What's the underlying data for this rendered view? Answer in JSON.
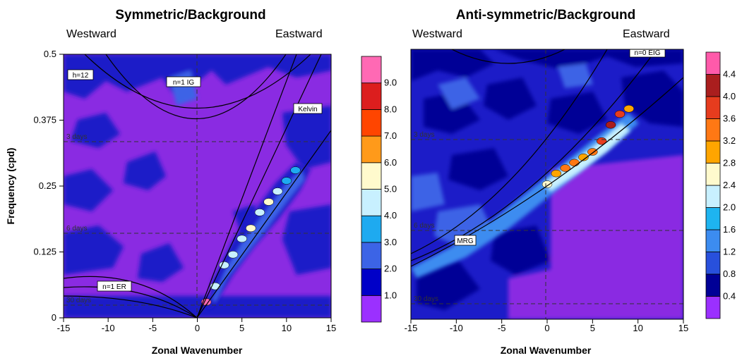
{
  "chart_data": [
    {
      "type": "heatmap",
      "title": "Symmetric/Background",
      "direction_labels": {
        "left": "Westward",
        "right": "Eastward"
      },
      "xlabel": "Zonal Wavenumber",
      "ylabel": "Frequency (cpd)",
      "xlim": [
        -15,
        15
      ],
      "ylim": [
        0,
        0.5
      ],
      "xticks": [
        "-15",
        "-10",
        "-5",
        "0",
        "5",
        "10",
        "15"
      ],
      "yticks": [
        "0",
        "0.125",
        "0.25",
        "0.375",
        "0.5"
      ],
      "colorbar_labels": [
        "1.0",
        "2.0",
        "3.0",
        "4.0",
        "5.0",
        "6.0",
        "7.0",
        "8.0",
        "9.0"
      ],
      "colorbar_colors": [
        "#9b30ff",
        "#0000c8",
        "#3c64e6",
        "#1eaaf0",
        "#c8f0ff",
        "#fffacd",
        "#ff9a1a",
        "#ff4500",
        "#dc1e1e",
        "#ff69b4"
      ],
      "curve_labels": [
        "h=12",
        "n=1 IG",
        "Kelvin",
        "n=1 ER"
      ],
      "period_labels": [
        "3 days",
        "6 days",
        "30 days"
      ],
      "ridge": [
        {
          "k": 1,
          "f": 0.03,
          "v": 10
        },
        {
          "k": 2,
          "f": 0.06,
          "v": 4
        },
        {
          "k": 3,
          "f": 0.1,
          "v": 4
        },
        {
          "k": 4,
          "f": 0.12,
          "v": 4.5
        },
        {
          "k": 5,
          "f": 0.15,
          "v": 4
        },
        {
          "k": 6,
          "f": 0.17,
          "v": 5
        },
        {
          "k": 7,
          "f": 0.2,
          "v": 4
        },
        {
          "k": 8,
          "f": 0.22,
          "v": 5
        },
        {
          "k": 9,
          "f": 0.24,
          "v": 4
        },
        {
          "k": 10,
          "f": 0.26,
          "v": 3.5
        },
        {
          "k": 11,
          "f": 0.28,
          "v": 3
        }
      ]
    },
    {
      "type": "heatmap",
      "title": "Anti-symmetric/Background",
      "direction_labels": {
        "left": "Westward",
        "right": "Eastward"
      },
      "xlabel": "Zonal Wavenumber",
      "ylabel": "",
      "xlim": [
        -15,
        15
      ],
      "ylim": [
        0,
        0.5
      ],
      "xticks": [
        "-15",
        "-10",
        "-5",
        "0",
        "5",
        "10",
        "15"
      ],
      "yticks": [],
      "colorbar_labels": [
        "0.4",
        "0.8",
        "1.2",
        "1.6",
        "2.0",
        "2.4",
        "2.8",
        "3.2",
        "3.6",
        "4.0",
        "4.4"
      ],
      "colorbar_colors": [
        "#9b30ff",
        "#000096",
        "#2850dc",
        "#3c8cf0",
        "#1eb4f0",
        "#c8f0ff",
        "#fffacd",
        "#ffa500",
        "#ff7814",
        "#e63c1e",
        "#aa1e1e",
        "#ff5aaa"
      ],
      "curve_labels": [
        "n=0 EIG",
        "MRG"
      ],
      "period_labels": [
        "3 days",
        "6 days",
        "30 days"
      ],
      "ridge": [
        {
          "k": 0,
          "f": 0.25,
          "v": 2.4
        },
        {
          "k": 1,
          "f": 0.27,
          "v": 2.8
        },
        {
          "k": 2,
          "f": 0.28,
          "v": 3.4
        },
        {
          "k": 3,
          "f": 0.29,
          "v": 3.2
        },
        {
          "k": 4,
          "f": 0.3,
          "v": 3.0
        },
        {
          "k": 5,
          "f": 0.31,
          "v": 3.5
        },
        {
          "k": 6,
          "f": 0.33,
          "v": 3.6
        },
        {
          "k": 7,
          "f": 0.36,
          "v": 4.0
        },
        {
          "k": 8,
          "f": 0.38,
          "v": 3.6
        },
        {
          "k": 9,
          "f": 0.39,
          "v": 3.0
        }
      ]
    }
  ]
}
